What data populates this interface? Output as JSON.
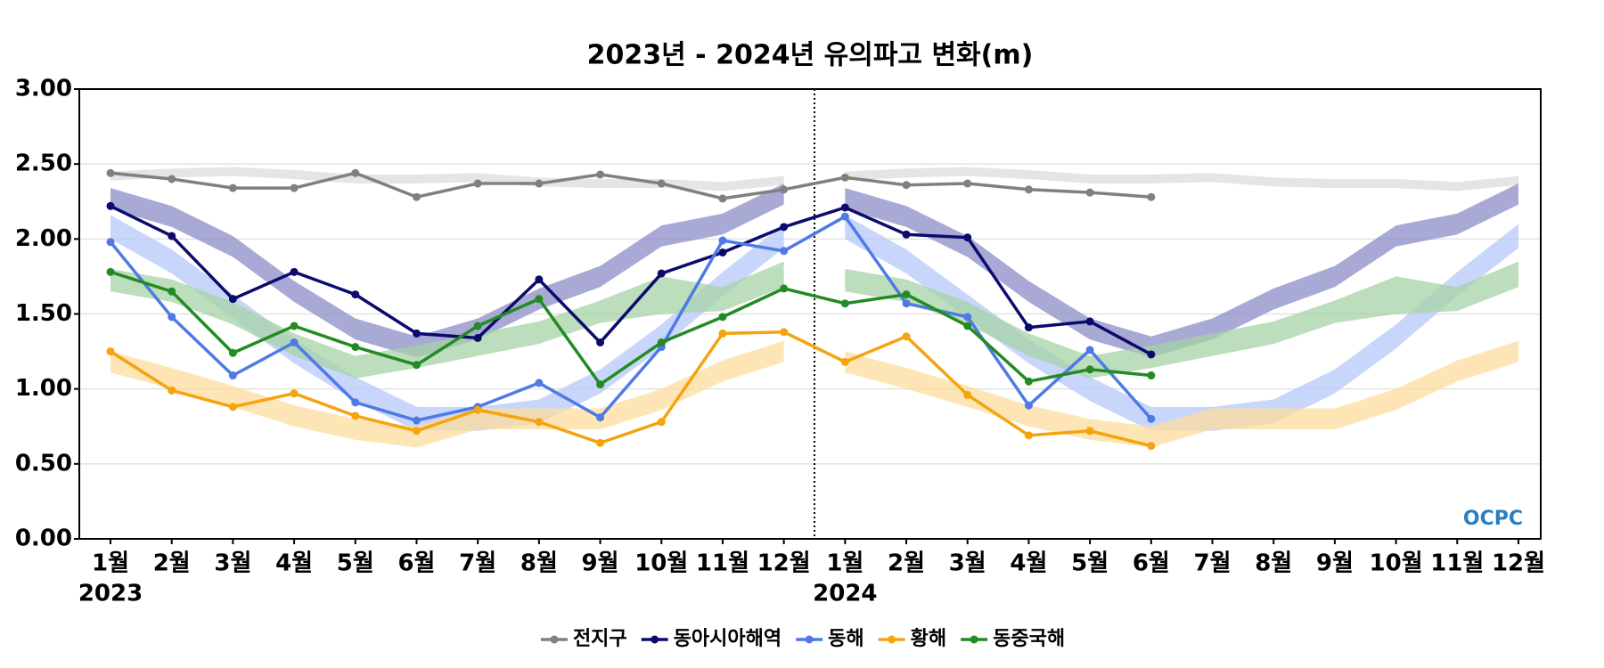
{
  "chart_data": {
    "type": "line",
    "title": "2023년 - 2024년 유의파고 변화(m)",
    "categories": [
      "1월",
      "2월",
      "3월",
      "4월",
      "5월",
      "6월",
      "7월",
      "8월",
      "9월",
      "10월",
      "11월",
      "12월",
      "1월",
      "2월",
      "3월",
      "4월",
      "5월",
      "6월",
      "7월",
      "8월",
      "9월",
      "10월",
      "11월",
      "12월"
    ],
    "years": [
      "2023",
      "2024"
    ],
    "ylim": [
      0,
      3
    ],
    "yticks": [
      {
        "value": 0,
        "label": "0.00"
      },
      {
        "value": 0.5,
        "label": "0.50"
      },
      {
        "value": 1,
        "label": "1.00"
      },
      {
        "value": 1.5,
        "label": "1.50"
      },
      {
        "value": 2,
        "label": "2.00"
      },
      {
        "value": 2.5,
        "label": "2.50"
      },
      {
        "value": 3,
        "label": "3.00"
      }
    ],
    "grid": true,
    "legend": "bottom",
    "watermark": "OCPC",
    "series": [
      {
        "name": "전지구",
        "color": "#808080",
        "band_color": "#dcdcdc",
        "values": [
          2.44,
          2.4,
          2.34,
          2.34,
          2.44,
          2.28,
          2.37,
          2.37,
          2.43,
          2.37,
          2.27,
          2.33,
          2.41,
          2.36,
          2.37,
          2.33,
          2.31,
          2.28,
          null,
          null,
          null,
          null,
          null,
          null
        ],
        "band_low": [
          2.39,
          2.41,
          2.42,
          2.4,
          2.37,
          2.37,
          2.38,
          2.35,
          2.34,
          2.34,
          2.32,
          2.36
        ],
        "band_high": [
          2.45,
          2.47,
          2.48,
          2.46,
          2.43,
          2.43,
          2.44,
          2.41,
          2.4,
          2.4,
          2.38,
          2.42
        ]
      },
      {
        "name": "동아시아해역",
        "color": "#0b0b6e",
        "band_color": "#8c8cc8",
        "values": [
          2.22,
          2.02,
          1.6,
          1.78,
          1.63,
          1.37,
          1.34,
          1.73,
          1.31,
          1.77,
          1.91,
          2.08,
          2.21,
          2.03,
          2.01,
          1.41,
          1.45,
          1.23,
          null,
          null,
          null,
          null,
          null,
          null
        ],
        "band_low": [
          2.2,
          2.08,
          1.88,
          1.58,
          1.33,
          1.21,
          1.33,
          1.53,
          1.68,
          1.95,
          2.03,
          2.23
        ],
        "band_high": [
          2.34,
          2.22,
          2.02,
          1.72,
          1.47,
          1.35,
          1.47,
          1.67,
          1.82,
          2.09,
          2.17,
          2.37
        ]
      },
      {
        "name": "동해",
        "color": "#4f7ae6",
        "band_color": "#b7c8fa",
        "values": [
          1.98,
          1.48,
          1.09,
          1.31,
          0.91,
          0.79,
          0.88,
          1.04,
          0.81,
          1.28,
          1.99,
          1.92,
          2.15,
          1.57,
          1.48,
          0.89,
          1.26,
          0.8,
          null,
          null,
          null,
          null,
          null,
          null
        ],
        "band_low": [
          2.0,
          1.77,
          1.47,
          1.17,
          0.92,
          0.72,
          0.72,
          0.77,
          0.97,
          1.27,
          1.62,
          1.94
        ],
        "band_high": [
          2.16,
          1.93,
          1.63,
          1.33,
          1.08,
          0.88,
          0.88,
          0.93,
          1.13,
          1.43,
          1.78,
          2.1
        ]
      },
      {
        "name": "황해",
        "color": "#f5a30f",
        "band_color": "#fddc9c",
        "values": [
          1.25,
          0.99,
          0.88,
          0.97,
          0.82,
          0.72,
          0.86,
          0.78,
          0.64,
          0.78,
          1.37,
          1.38,
          1.18,
          1.35,
          0.96,
          0.69,
          0.72,
          0.62,
          null,
          null,
          null,
          null,
          null,
          null
        ],
        "band_low": [
          1.11,
          1.0,
          0.88,
          0.75,
          0.66,
          0.61,
          0.73,
          0.73,
          0.73,
          0.86,
          1.05,
          1.18
        ],
        "band_high": [
          1.25,
          1.14,
          1.02,
          0.89,
          0.8,
          0.75,
          0.87,
          0.87,
          0.87,
          1.0,
          1.19,
          1.32
        ]
      },
      {
        "name": "동중국해",
        "color": "#238b23",
        "band_color": "#a6d3a6",
        "values": [
          1.78,
          1.65,
          1.24,
          1.42,
          1.28,
          1.16,
          1.42,
          1.6,
          1.03,
          1.31,
          1.48,
          1.67,
          1.57,
          1.63,
          1.42,
          1.05,
          1.13,
          1.09,
          null,
          null,
          null,
          null,
          null,
          null
        ],
        "band_low": [
          1.65,
          1.58,
          1.43,
          1.22,
          1.07,
          1.14,
          1.22,
          1.3,
          1.44,
          1.5,
          1.52,
          1.68
        ],
        "band_high": [
          1.8,
          1.73,
          1.58,
          1.37,
          1.22,
          1.29,
          1.37,
          1.45,
          1.59,
          1.75,
          1.68,
          1.85
        ]
      }
    ]
  }
}
